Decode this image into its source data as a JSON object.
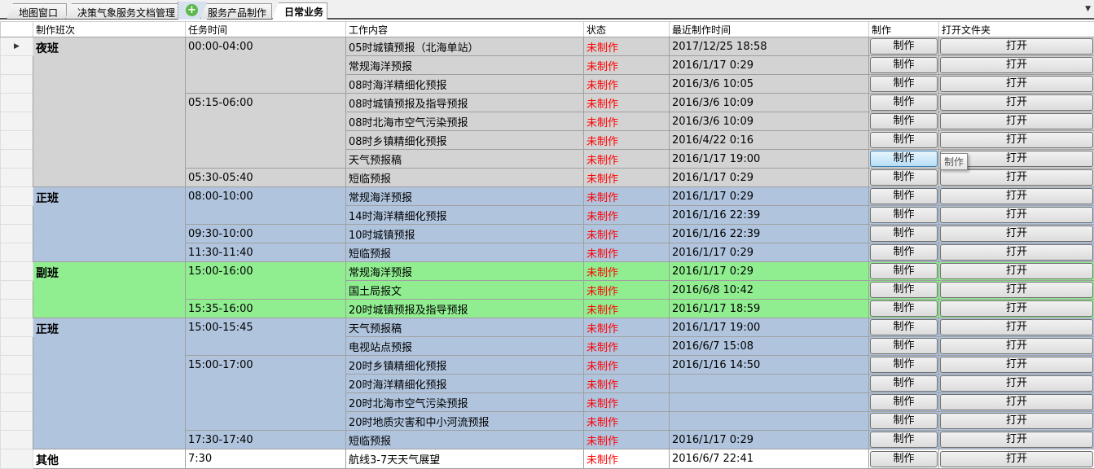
{
  "tabs": [
    {
      "label": "地图窗口",
      "active": false
    },
    {
      "label": "决策气象服务文档管理",
      "active": false
    },
    {
      "label": "服务产品制作",
      "active": false
    },
    {
      "label": "日常业务",
      "active": true
    }
  ],
  "add_tab_icon": "plus-circle-icon",
  "columns": [
    "制作班次",
    "任务时间",
    "工作内容",
    "状态",
    "最近制作时间",
    "制作",
    "打开文件夹"
  ],
  "colors": {
    "night": "#d3d3d3",
    "day": "#b0c4de",
    "deputy": "#90ee90",
    "other": "#ffffff",
    "status": "#ff0000"
  },
  "button_make": "制作",
  "button_open": "打开",
  "tooltip": "制作",
  "groups": [
    {
      "shift": "夜班",
      "color": "night",
      "slots": [
        {
          "time": "00:00-04:00",
          "tasks": [
            [
              "05时城镇预报（北海单站）",
              "未制作",
              "2017/12/25 18:58"
            ],
            [
              "常规海洋预报",
              "未制作",
              "2016/1/17 0:29"
            ],
            [
              "08时海洋精细化预报",
              "未制作",
              "2016/3/6 10:05"
            ]
          ]
        },
        {
          "time": "05:15-06:00",
          "tasks": [
            [
              "08时城镇预报及指导预报",
              "未制作",
              "2016/3/6 10:09"
            ],
            [
              "08时北海市空气污染预报",
              "未制作",
              "2016/3/6 10:09"
            ],
            [
              "08时乡镇精细化预报",
              "未制作",
              "2016/4/22 0:16"
            ],
            [
              "天气预报稿",
              "未制作",
              "2016/1/17 19:00"
            ]
          ]
        },
        {
          "time": "05:30-05:40",
          "tasks": [
            [
              "短临预报",
              "未制作",
              "2016/1/17 0:29"
            ]
          ]
        }
      ]
    },
    {
      "shift": "正班",
      "color": "day",
      "slots": [
        {
          "time": "08:00-10:00",
          "tasks": [
            [
              "常规海洋预报",
              "未制作",
              "2016/1/17 0:29"
            ],
            [
              "14时海洋精细化预报",
              "未制作",
              "2016/1/16 22:39"
            ]
          ]
        },
        {
          "time": "09:30-10:00",
          "tasks": [
            [
              "10时城镇预报",
              "未制作",
              "2016/1/16 22:39"
            ]
          ]
        },
        {
          "time": "11:30-11:40",
          "tasks": [
            [
              "短临预报",
              "未制作",
              "2016/1/17 0:29"
            ]
          ]
        }
      ]
    },
    {
      "shift": "副班",
      "color": "deputy",
      "slots": [
        {
          "time": "15:00-16:00",
          "tasks": [
            [
              "常规海洋预报",
              "未制作",
              "2016/1/17 0:29"
            ],
            [
              "国土局报文",
              "未制作",
              "2016/6/8 10:42"
            ]
          ]
        },
        {
          "time": "15:35-16:00",
          "tasks": [
            [
              "20时城镇预报及指导预报",
              "未制作",
              "2016/1/17 18:59"
            ]
          ]
        }
      ]
    },
    {
      "shift": "正班",
      "color": "day",
      "slots": [
        {
          "time": "15:00-15:45",
          "tasks": [
            [
              "天气预报稿",
              "未制作",
              "2016/1/17 19:00"
            ],
            [
              "电视站点预报",
              "未制作",
              "2016/6/7 15:08"
            ]
          ]
        },
        {
          "time": "15:00-17:00",
          "tasks": [
            [
              "20时乡镇精细化预报",
              "未制作",
              "2016/1/16 14:50"
            ],
            [
              "20时海洋精细化预报",
              "未制作",
              ""
            ],
            [
              "20时北海市空气污染预报",
              "未制作",
              ""
            ],
            [
              "20时地质灾害和中小河流预报",
              "未制作",
              ""
            ]
          ]
        },
        {
          "time": "17:30-17:40",
          "tasks": [
            [
              "短临预报",
              "未制作",
              "2016/1/17 0:29"
            ]
          ]
        }
      ]
    },
    {
      "shift": "其他",
      "color": "other",
      "slots": [
        {
          "time": "7:30",
          "tasks": [
            [
              "航线3-7天天气展望",
              "未制作",
              "2016/6/7 22:41"
            ]
          ]
        }
      ]
    }
  ]
}
